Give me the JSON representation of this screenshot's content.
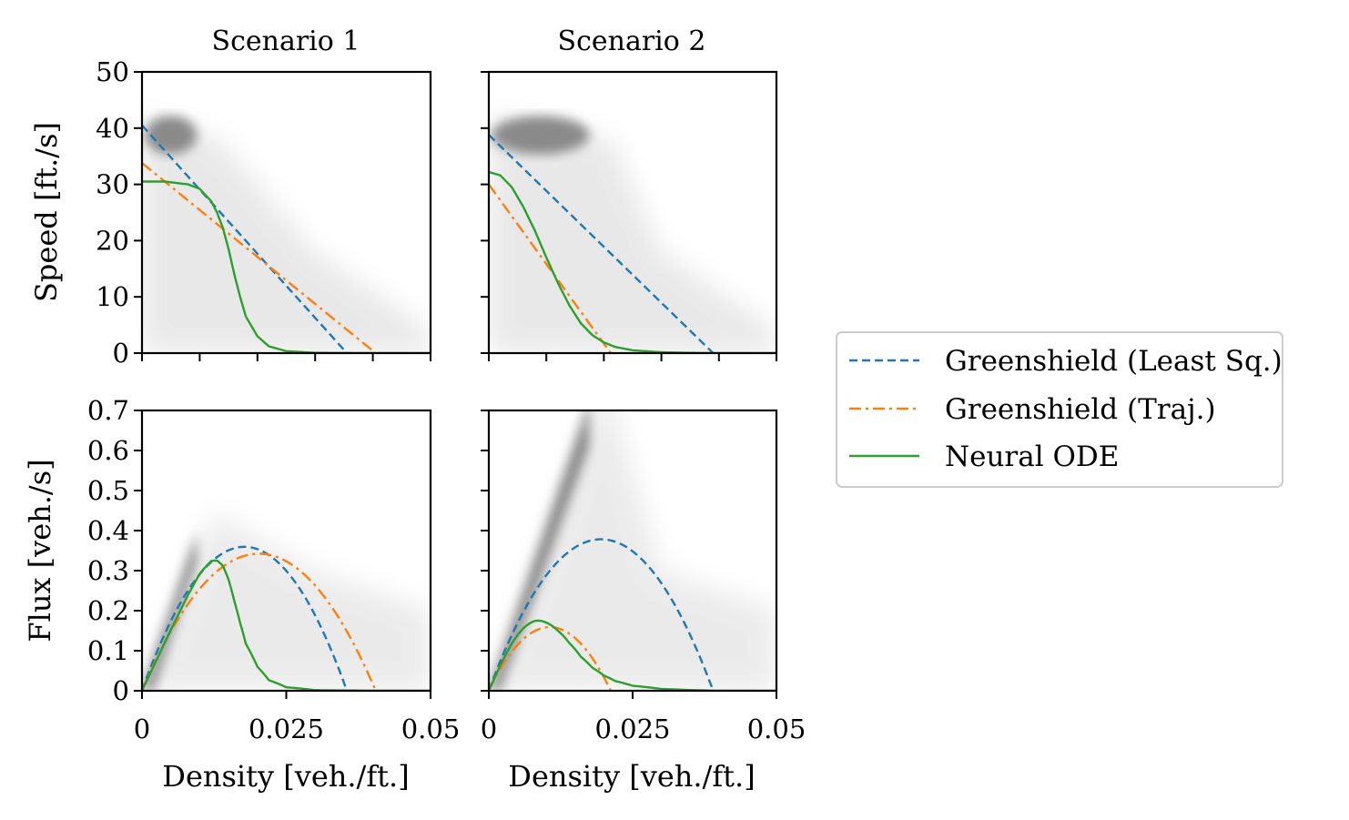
{
  "chart_data": {
    "type": "line",
    "columns": [
      {
        "title": "Scenario 1"
      },
      {
        "title": "Scenario 2"
      }
    ],
    "x": {
      "label": "Density [veh./ft.]",
      "lim": [
        0,
        0.05
      ],
      "ticks": [
        0,
        0.025,
        0.05
      ],
      "tick_labels": [
        "0",
        "0.025",
        "0.05"
      ]
    },
    "rows": [
      {
        "ylabel": "Speed [ft./s]",
        "ylim": [
          0,
          50
        ],
        "ticks": [
          0,
          10,
          20,
          30,
          40,
          50
        ],
        "tick_labels": [
          "0",
          "10",
          "20",
          "30",
          "40",
          "50"
        ]
      },
      {
        "ylabel": "Flux [veh./s]",
        "ylim": [
          0,
          0.7
        ],
        "ticks": [
          0,
          0.1,
          0.2,
          0.3,
          0.4,
          0.5,
          0.6,
          0.7
        ],
        "tick_labels": [
          "0",
          "0.1",
          "0.2",
          "0.3",
          "0.4",
          "0.5",
          "0.6",
          "0.7"
        ]
      }
    ],
    "series": [
      {
        "name": "Greenshield (Least Sq.)",
        "color": "#1f77b4",
        "dash": "dashed"
      },
      {
        "name": "Greenshield (Traj.)",
        "color": "#ff7f0e",
        "dash": "dashdot"
      },
      {
        "name": "Neural ODE",
        "color": "#2ca02c",
        "dash": "solid"
      }
    ],
    "scenarios": [
      {
        "name": "Scenario 1",
        "greenshield_ls": {
          "vmax": 40.5,
          "rho_max": 0.0355
        },
        "greenshield_traj": {
          "vmax": 33.8,
          "rho_max": 0.0405
        },
        "neural_ode": {
          "speed": {
            "density": [
              0,
              0.004,
              0.008,
              0.01,
              0.012,
              0.013,
              0.014,
              0.015,
              0.016,
              0.017,
              0.018,
              0.02,
              0.022,
              0.025,
              0.03,
              0.04,
              0.05
            ],
            "values": [
              30.5,
              30.5,
              30.0,
              29.2,
              27.0,
              25.0,
              22.3,
              18.5,
              14.0,
              10.0,
              6.5,
              3.0,
              1.2,
              0.35,
              0.05,
              0,
              0
            ]
          }
        },
        "scatter": {
          "dense_cluster": {
            "density": [
              0.0005,
              0.0095
            ],
            "speed": [
              36,
              41.5
            ]
          },
          "diffuse_region": {
            "density": [
              0,
              0.05
            ],
            "speed": [
              0,
              42
            ]
          }
        }
      },
      {
        "name": "Scenario 2",
        "greenshield_ls": {
          "vmax": 38.8,
          "rho_max": 0.039
        },
        "greenshield_traj": {
          "vmax": 30.0,
          "rho_max": 0.0212
        },
        "neural_ode": {
          "speed": {
            "density": [
              0,
              0.002,
              0.004,
              0.006,
              0.008,
              0.01,
              0.012,
              0.014,
              0.016,
              0.018,
              0.02,
              0.022,
              0.025,
              0.03,
              0.035,
              0.04,
              0.05
            ],
            "values": [
              32.2,
              31.6,
              29.5,
              26.0,
              21.8,
              17.0,
              12.5,
              8.5,
              5.3,
              3.2,
              1.9,
              1.1,
              0.5,
              0.15,
              0.05,
              0,
              0
            ]
          }
        },
        "scatter": {
          "dense_cluster": {
            "density": [
              0.0005,
              0.0175
            ],
            "speed": [
              36,
              41.5
            ]
          },
          "diffuse_region": {
            "density": [
              0,
              0.05
            ],
            "speed": [
              0,
              42
            ]
          }
        }
      }
    ],
    "legend": {
      "position": "right",
      "entries": [
        "Greenshield (Least Sq.)",
        "Greenshield (Traj.)",
        "Neural ODE"
      ]
    }
  }
}
